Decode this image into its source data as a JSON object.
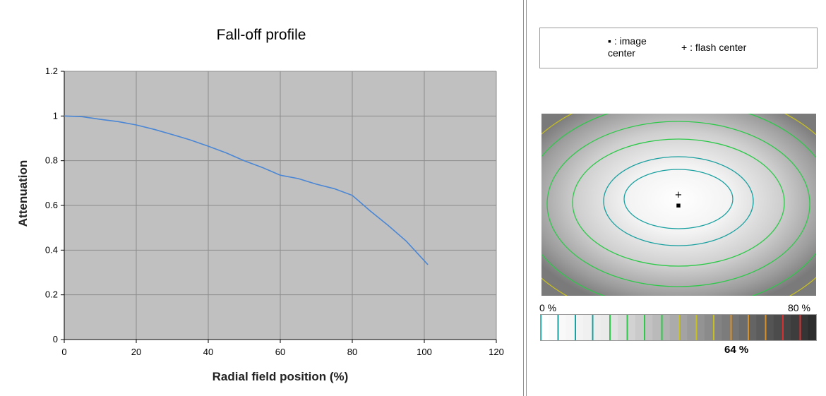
{
  "chart_data": {
    "type": "line",
    "title": "Fall-off profile",
    "xlabel": "Radial field position (%)",
    "ylabel": "Attenuation",
    "xlim": [
      0,
      120
    ],
    "ylim": [
      0,
      1.2
    ],
    "xticks": [
      0,
      20,
      40,
      60,
      80,
      100,
      120
    ],
    "yticks": [
      0,
      0.2,
      0.4,
      0.6,
      0.8,
      1,
      1.2
    ],
    "ytick_labels": [
      "0",
      "0.2",
      "0.4",
      "0.6",
      "0.8",
      "1",
      "1.2"
    ],
    "grid": true,
    "series": [
      {
        "line_color": "#4a86d4",
        "x": [
          0,
          5,
          10,
          15,
          20,
          25,
          30,
          35,
          40,
          45,
          50,
          55,
          60,
          65,
          70,
          75,
          80,
          85,
          90,
          95,
          101
        ],
        "y": [
          1.0,
          0.997,
          0.985,
          0.975,
          0.96,
          0.94,
          0.917,
          0.893,
          0.865,
          0.835,
          0.8,
          0.77,
          0.735,
          0.72,
          0.695,
          0.675,
          0.645,
          0.575,
          0.51,
          0.44,
          0.335
        ]
      }
    ]
  },
  "legend": {
    "image_marker": "▪",
    "image_label_line1": ": image",
    "image_label_line2": "center",
    "flash_marker": "+",
    "flash_label": ": flash center"
  },
  "contour_map": {
    "image_center_marker": "▪",
    "flash_center_marker": "+"
  },
  "scale": {
    "min_label": "0 %",
    "max_label": "80 %",
    "readout": "64 %"
  },
  "colors": {
    "plot_background": "#c0c0c0",
    "grid": "#8c8c8c",
    "contour_teal": "#1aa0a0",
    "contour_green": "#2ec94a",
    "contour_yellow": "#c8c020",
    "contour_orange": "#d8902a",
    "contour_red": "#d83030"
  }
}
